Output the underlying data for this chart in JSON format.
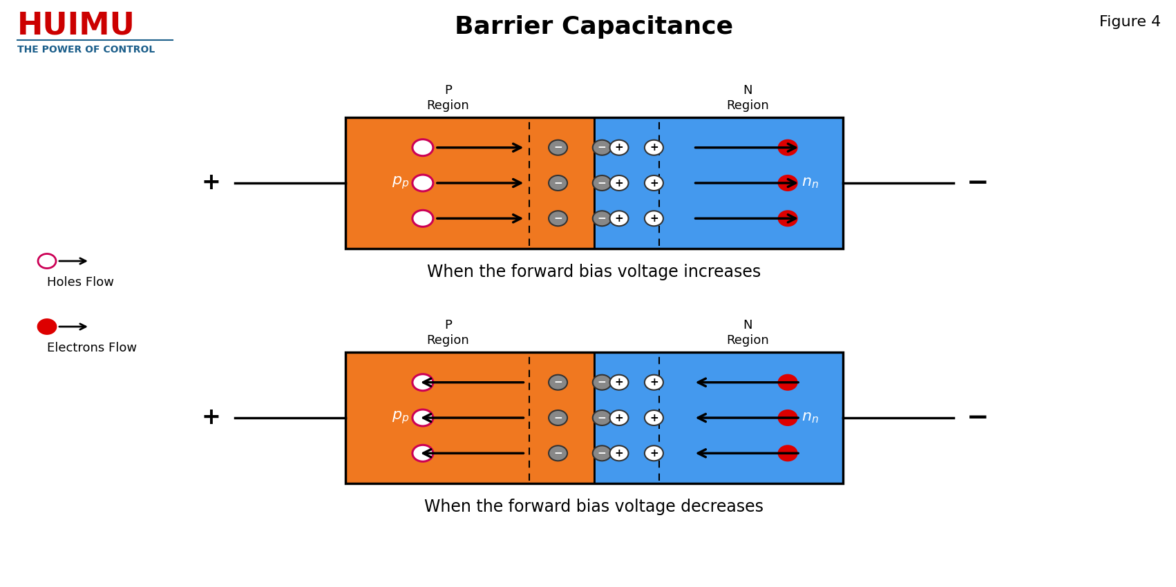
{
  "title": "Barrier Capacitance",
  "figure_label": "Figure 4",
  "logo_text": "HUIMU",
  "logo_sub": "THE POWER OF CONTROL",
  "logo_color": "#CC0000",
  "logo_sub_color": "#1B5E8A",
  "orange_color": "#F07820",
  "blue_color": "#4499EE",
  "p_region_label": "P\nRegion",
  "n_region_label": "N\nRegion",
  "caption1": "When the forward bias voltage increases",
  "caption2": "When the forward bias voltage decreases",
  "legend_hole": "Holes Flow",
  "legend_electron": "Electrons Flow"
}
